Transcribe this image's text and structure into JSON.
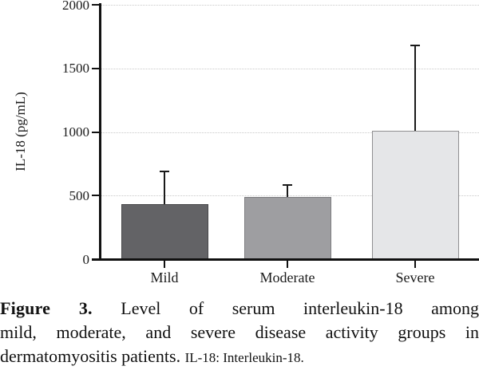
{
  "figure": {
    "caption": {
      "label": "Figure 3.",
      "line1_rest": "Level of serum interleukin-18 among",
      "line2": "mild, moderate, and severe disease activity groups in",
      "line3_main": "dermatomyositis patients.",
      "line3_small": "IL-18: Interleukin-18."
    }
  },
  "chart_data": {
    "type": "bar",
    "title": "",
    "ylabel": "IL-18 (pg/mL)",
    "xlabel": "",
    "categories": [
      "Mild",
      "Moderate",
      "Severe"
    ],
    "values": [
      430,
      490,
      1010
    ],
    "errors_upper": [
      260,
      90,
      670
    ],
    "ylim": [
      0,
      2000
    ],
    "yticks": [
      0,
      500,
      1000,
      1500,
      2000
    ],
    "grid": "horizontal-dotted",
    "legend": "none",
    "bar_colors": [
      "#636366",
      "#9e9ea1",
      "#e5e6e8"
    ],
    "bar_border_colors": [
      "#47474a",
      "#7d7d80",
      "#8f8f91"
    ],
    "error_bar_color": "#1a1a1a",
    "gridline_color": "#c9c9c9",
    "axis_color": "#111111"
  }
}
